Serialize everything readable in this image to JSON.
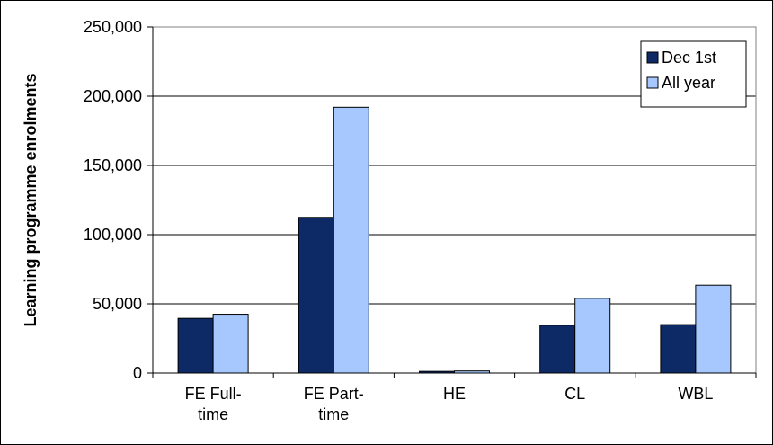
{
  "chart_data": {
    "type": "bar",
    "title": "",
    "xlabel": "",
    "ylabel": "Learning programme enrolments",
    "ylim": [
      0,
      250000
    ],
    "yticks": [
      0,
      50000,
      100000,
      150000,
      200000,
      250000
    ],
    "ytick_labels": [
      "0",
      "50,000",
      "100,000",
      "150,000",
      "200,000",
      "250,000"
    ],
    "categories": [
      [
        "FE Full-",
        "time"
      ],
      [
        "FE Part-",
        "time"
      ],
      [
        "HE"
      ],
      [
        "CL"
      ],
      [
        "WBL"
      ]
    ],
    "series": [
      {
        "name": "Dec 1st",
        "color": "#0d2a66",
        "values": [
          39500,
          112500,
          1200,
          34500,
          35000
        ]
      },
      {
        "name": "All year",
        "color": "#a6c8ff",
        "values": [
          42500,
          192000,
          1500,
          54000,
          63500
        ]
      }
    ],
    "grid": true,
    "legend": "top-right"
  }
}
